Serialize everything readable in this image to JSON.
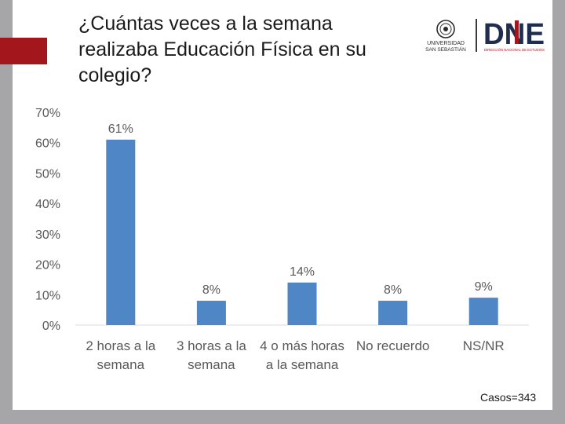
{
  "title": "¿Cuántas veces a la semana realizaba Educación Física en su colegio?",
  "logos": {
    "university_lines": [
      "UNIVERSIDAD",
      "SAN SEBASTIÁN"
    ],
    "dne_text": "DNE",
    "dne_subtitle": "DIRECCIÓN NACIONAL DE ESTUDIOS"
  },
  "cases_label": "Casos=343",
  "colors": {
    "bar": "#4e86c6",
    "accent": "#a3161b",
    "frame": "#a6a6a8",
    "text": "#1b1b1b",
    "axis_text": "#5a5a5a",
    "grid": "#dcdcdc"
  },
  "chart_data": {
    "type": "bar",
    "title": "¿Cuántas veces a la semana realizaba Educación Física en su colegio?",
    "categories": [
      [
        "2 horas a la",
        "semana"
      ],
      [
        "3 horas a la",
        "semana"
      ],
      [
        "4 o más horas",
        "a la semana"
      ],
      [
        "No recuerdo"
      ],
      [
        "NS/NR"
      ]
    ],
    "values": [
      61,
      8,
      14,
      8,
      9
    ],
    "data_labels": [
      "61%",
      "8%",
      "14%",
      "8%",
      "9%"
    ],
    "y_ticks": [
      0,
      10,
      20,
      30,
      40,
      50,
      60,
      70
    ],
    "y_tick_labels": [
      "0%",
      "10%",
      "20%",
      "30%",
      "40%",
      "50%",
      "60%",
      "70%"
    ],
    "ylim": [
      0,
      70
    ],
    "xlabel": "",
    "ylabel": "",
    "legend": "none"
  }
}
